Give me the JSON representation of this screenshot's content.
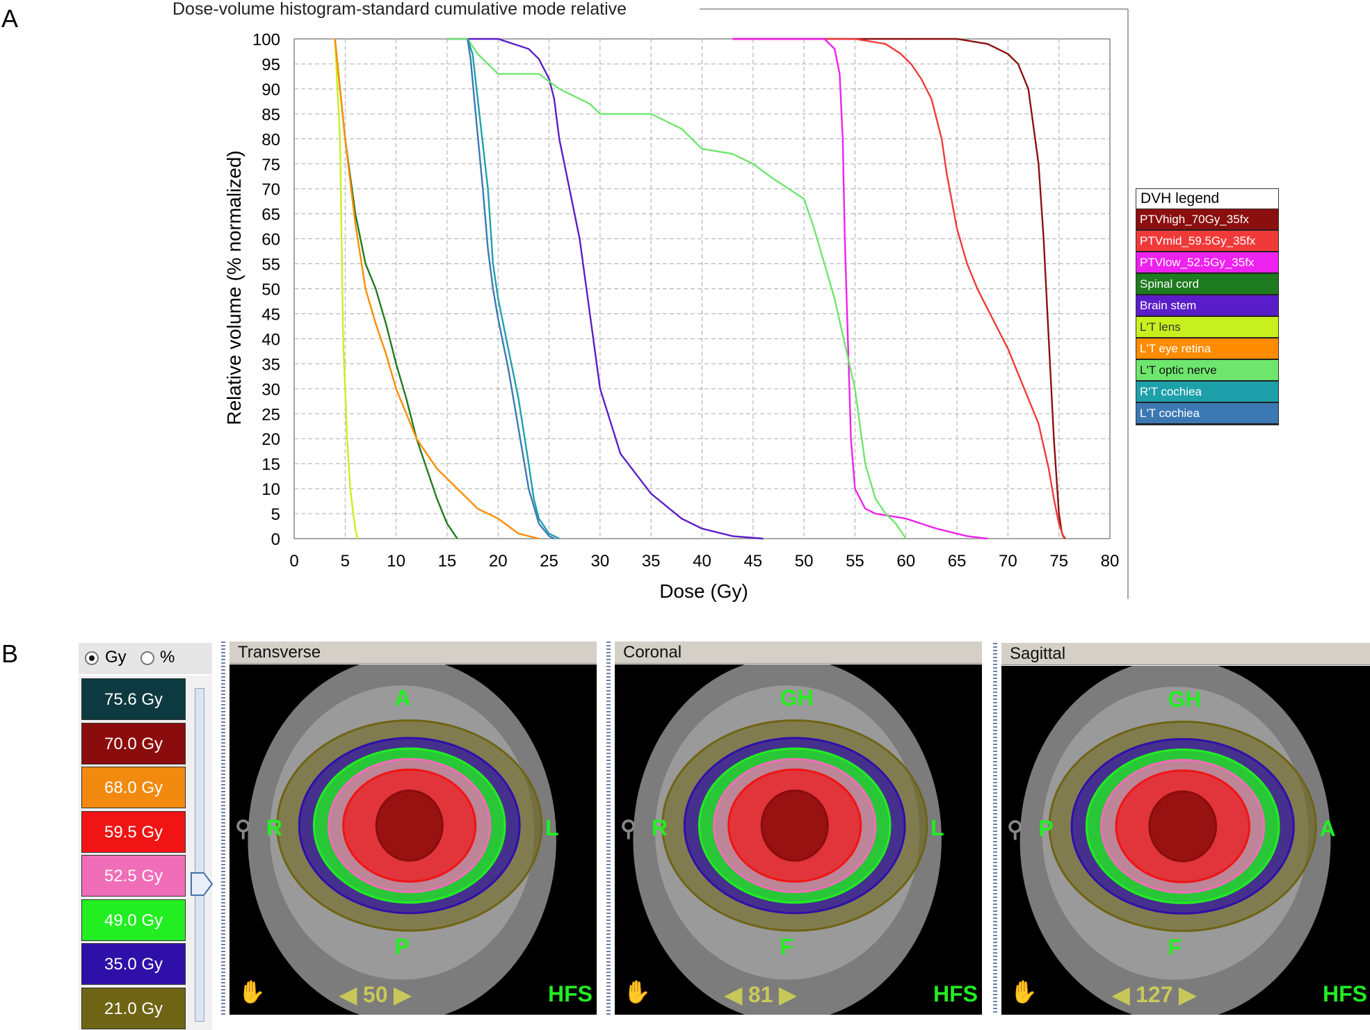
{
  "panels": {
    "a": "A",
    "b": "B"
  },
  "chart_data": {
    "type": "line",
    "title": "Dose-volume histogram-standard cumulative mode relative",
    "xlabel": "Dose (Gy)",
    "ylabel": "Relative volume (% normalized)",
    "xlim": [
      0,
      80
    ],
    "ylim": [
      0,
      100
    ],
    "xticks": [
      0,
      5,
      10,
      15,
      20,
      25,
      30,
      35,
      40,
      45,
      50,
      55,
      60,
      65,
      70,
      75,
      80
    ],
    "yticks": [
      0,
      5,
      10,
      15,
      20,
      25,
      30,
      35,
      40,
      45,
      50,
      55,
      60,
      65,
      70,
      75,
      80,
      85,
      90,
      95,
      100
    ],
    "grid": true,
    "legend_title": "DVH legend",
    "legend_position": "right",
    "series": [
      {
        "name": "PTVhigh_70Gy_35fx",
        "color": "#8b0f0f",
        "x": [
          43,
          60,
          65,
          68,
          70,
          71,
          72,
          73,
          73.5,
          74,
          74.5,
          75,
          75.3,
          75.6
        ],
        "y": [
          100,
          100,
          100,
          99,
          97,
          95,
          90,
          75,
          60,
          40,
          20,
          5,
          1,
          0
        ]
      },
      {
        "name": "PTVmid_59.5Gy_35fx",
        "color": "#f03a3a",
        "x": [
          43,
          55,
          58,
          59.5,
          60.5,
          61.5,
          62.5,
          63.5,
          64,
          65,
          66,
          67,
          68,
          69,
          70,
          71,
          72,
          73,
          74,
          74.5,
          75,
          75.5
        ],
        "y": [
          100,
          100,
          99,
          97,
          95,
          92,
          88,
          80,
          73,
          62,
          55,
          50,
          46,
          42,
          38,
          33,
          28,
          23,
          14,
          8,
          3,
          0
        ]
      },
      {
        "name": "PTVlow_52.5Gy_35fx",
        "color": "#ee22ee",
        "x": [
          43,
          52,
          53,
          53.5,
          53.8,
          54,
          54.3,
          54.6,
          55,
          56,
          57,
          60,
          63,
          66,
          68
        ],
        "y": [
          100,
          100,
          98,
          93,
          80,
          60,
          40,
          20,
          10,
          6,
          5,
          4,
          2,
          0.5,
          0
        ]
      },
      {
        "name": "Spinal cord",
        "color": "#1e7a1e",
        "x": [
          4,
          5,
          6,
          7,
          8,
          9,
          10,
          11,
          12,
          13,
          14,
          15,
          16
        ],
        "y": [
          100,
          80,
          65,
          55,
          50,
          43,
          35,
          28,
          20,
          14,
          8,
          3,
          0
        ]
      },
      {
        "name": "Brain stem",
        "color": "#5a1ec8",
        "x": [
          15,
          20,
          23,
          24,
          25,
          25.5,
          26,
          27,
          28,
          29,
          30,
          32,
          35,
          38,
          40,
          43,
          46
        ],
        "y": [
          100,
          100,
          98,
          96,
          92,
          88,
          80,
          70,
          60,
          45,
          30,
          17,
          9,
          4,
          2,
          0.5,
          0
        ]
      },
      {
        "name": "L'T lens",
        "color": "#c8f01e",
        "x": [
          4,
          4.5,
          4.8,
          5,
          5.2,
          5.5,
          5.8,
          6,
          6.2
        ],
        "y": [
          100,
          80,
          40,
          30,
          20,
          10,
          5,
          2,
          0
        ]
      },
      {
        "name": "L'T eye retina",
        "color": "#ff8c00",
        "x": [
          4,
          5,
          6,
          7,
          8,
          9,
          10,
          11,
          12,
          13,
          14,
          15,
          16,
          18,
          20,
          22,
          24
        ],
        "y": [
          100,
          80,
          63,
          50,
          43,
          37,
          30,
          25,
          20,
          17,
          14,
          12,
          10,
          6,
          4,
          1,
          0
        ]
      },
      {
        "name": "L'T optic nerve",
        "color": "#6ee66e",
        "x": [
          15,
          17,
          18,
          19,
          20,
          24,
          26,
          29,
          30,
          35,
          38,
          40,
          43,
          45,
          47,
          50,
          51,
          52,
          53,
          55,
          56,
          57,
          58,
          59,
          60
        ],
        "y": [
          100,
          100,
          97,
          95,
          93,
          93,
          90,
          87,
          85,
          85,
          82,
          78,
          77,
          75,
          72,
          68,
          62,
          55,
          48,
          30,
          15,
          8,
          5,
          3,
          0
        ]
      },
      {
        "name": "R'T cochiea",
        "color": "#1ea0aa",
        "x": [
          17,
          17.5,
          18,
          19,
          19.5,
          20,
          21,
          22,
          23,
          23.5,
          24,
          25,
          26
        ],
        "y": [
          100,
          97,
          88,
          70,
          55,
          48,
          38,
          28,
          15,
          8,
          4,
          1,
          0
        ]
      },
      {
        "name": "L'T cochiea",
        "color": "#3c78b4",
        "x": [
          17,
          17.3,
          17.8,
          18.5,
          19,
          19.5,
          20,
          21,
          22,
          23,
          24,
          25,
          25.5
        ],
        "y": [
          100,
          96,
          85,
          70,
          58,
          50,
          44,
          34,
          22,
          10,
          3,
          0.5,
          0
        ]
      }
    ]
  },
  "legend_text_colors": {
    "L'T lens": "#333333",
    "L'T optic nerve": "#111111"
  },
  "dose_panel": {
    "unit_gy": "Gy",
    "unit_pct": "%",
    "levels": [
      {
        "label": "75.6 Gy",
        "color": "#0d3a40"
      },
      {
        "label": "70.0 Gy",
        "color": "#8b0c0c"
      },
      {
        "label": "68.0 Gy",
        "color": "#f28a10"
      },
      {
        "label": "59.5 Gy",
        "color": "#f01414"
      },
      {
        "label": "52.5 Gy",
        "color": "#f06eb8"
      },
      {
        "label": "49.0 Gy",
        "color": "#22ee22"
      },
      {
        "label": "35.0 Gy",
        "color": "#2e10a8"
      },
      {
        "label": "21.0 Gy",
        "color": "#6e6414"
      }
    ]
  },
  "views": [
    {
      "title": "Transverse",
      "left": "R",
      "right": "L",
      "top": "A",
      "bottom": "P",
      "slice": "50",
      "orientation": "HFS"
    },
    {
      "title": "Coronal",
      "left": "R",
      "right": "L",
      "top": "GH",
      "bottom": "F",
      "slice": "81",
      "orientation": "HFS"
    },
    {
      "title": "Sagittal",
      "left": "P",
      "right": "A",
      "top": "GH",
      "bottom": "F",
      "slice": "127",
      "orientation": "HFS"
    }
  ]
}
